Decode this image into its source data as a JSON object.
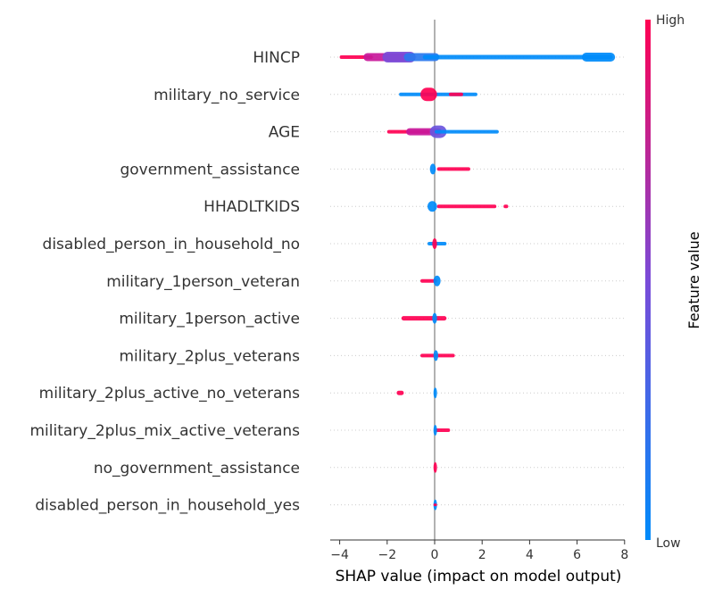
{
  "chart_data": {
    "type": "scatter",
    "subtype": "shap-beeswarm-summary",
    "xlabel": "SHAP value (impact on model output)",
    "xlim": [
      -4.4,
      8.2
    ],
    "xticks": [
      -4,
      -2,
      0,
      2,
      4,
      6,
      8
    ],
    "xtick_labels": [
      "−4",
      "−2",
      "0",
      "2",
      "4",
      "6",
      "8"
    ],
    "colorbar": {
      "label": "Feature value",
      "high_label": "High",
      "low_label": "Low",
      "high_color": "#ff0052",
      "low_color": "#008bfa"
    },
    "features": [
      {
        "name": "HINCP",
        "clusters": [
          {
            "min": -4.0,
            "max": -2.6,
            "color": "#ff0052",
            "width": 4
          },
          {
            "min": -3.0,
            "max": -1.0,
            "color": "#c8189a",
            "width": 9
          },
          {
            "min": -2.2,
            "max": -0.8,
            "color": "#7a4bd8",
            "width": 12
          },
          {
            "min": -1.3,
            "max": 0.2,
            "color": "#2a78ee",
            "width": 9
          },
          {
            "min": -0.5,
            "max": 7.5,
            "color": "#008bfa",
            "width": 5
          },
          {
            "min": 6.2,
            "max": 7.6,
            "color": "#008bfa",
            "width": 10
          }
        ]
      },
      {
        "name": "military_no_service",
        "clusters": [
          {
            "min": -1.5,
            "max": 1.8,
            "color": "#008bfa",
            "width": 4
          },
          {
            "min": -0.6,
            "max": 0.1,
            "color": "#ff0052",
            "width": 15
          },
          {
            "min": 0.6,
            "max": 1.2,
            "color": "#ff0052",
            "width": 4
          }
        ]
      },
      {
        "name": "AGE",
        "clusters": [
          {
            "min": -2.0,
            "max": -0.2,
            "color": "#ff0052",
            "width": 4
          },
          {
            "min": -1.2,
            "max": 0.3,
            "color": "#c8189a",
            "width": 8
          },
          {
            "min": -0.2,
            "max": 0.5,
            "color": "#6a55dd",
            "width": 14
          },
          {
            "min": 0.0,
            "max": 2.7,
            "color": "#008bfa",
            "width": 4
          }
        ]
      },
      {
        "name": "government_assistance",
        "clusters": [
          {
            "min": -0.2,
            "max": 0.05,
            "color": "#008bfa",
            "width": 12
          },
          {
            "min": 0.1,
            "max": 1.5,
            "color": "#ff0052",
            "width": 4
          }
        ]
      },
      {
        "name": "HHADLTKIDS",
        "clusters": [
          {
            "min": -0.3,
            "max": 0.1,
            "color": "#008bfa",
            "width": 12
          },
          {
            "min": 0.1,
            "max": 2.6,
            "color": "#ff0052",
            "width": 4
          },
          {
            "min": 2.9,
            "max": 3.1,
            "color": "#ff0052",
            "width": 4
          }
        ]
      },
      {
        "name": "disabled_person_in_household_no",
        "clusters": [
          {
            "min": -0.3,
            "max": 0.5,
            "color": "#008bfa",
            "width": 4
          },
          {
            "min": -0.1,
            "max": 0.1,
            "color": "#ff0052",
            "width": 12
          }
        ]
      },
      {
        "name": "military_1person_veteran",
        "clusters": [
          {
            "min": -0.6,
            "max": 0.1,
            "color": "#ff0052",
            "width": 4
          },
          {
            "min": -0.05,
            "max": 0.25,
            "color": "#008bfa",
            "width": 12
          }
        ]
      },
      {
        "name": "military_1person_active",
        "clusters": [
          {
            "min": -1.4,
            "max": 0.5,
            "color": "#ff0052",
            "width": 5
          },
          {
            "min": -0.1,
            "max": 0.1,
            "color": "#008bfa",
            "width": 12
          }
        ]
      },
      {
        "name": "military_2plus_veterans",
        "clusters": [
          {
            "min": -0.6,
            "max": 0.85,
            "color": "#ff0052",
            "width": 4
          },
          {
            "min": -0.05,
            "max": 0.15,
            "color": "#008bfa",
            "width": 12
          }
        ]
      },
      {
        "name": "military_2plus_active_no_veterans",
        "clusters": [
          {
            "min": -1.6,
            "max": -1.3,
            "color": "#ff0052",
            "width": 5
          },
          {
            "min": -0.05,
            "max": 0.1,
            "color": "#008bfa",
            "width": 12
          }
        ]
      },
      {
        "name": "military_2plus_mix_active_veterans",
        "clusters": [
          {
            "min": 0.0,
            "max": 0.65,
            "color": "#ff0052",
            "width": 4
          },
          {
            "min": -0.05,
            "max": 0.1,
            "color": "#008bfa",
            "width": 12
          }
        ]
      },
      {
        "name": "no_government_assistance",
        "clusters": [
          {
            "min": -0.05,
            "max": 0.1,
            "color": "#ff0052",
            "width": 12
          }
        ]
      },
      {
        "name": "disabled_person_in_household_yes",
        "clusters": [
          {
            "min": -0.05,
            "max": 0.1,
            "color": "#008bfa",
            "width": 12
          },
          {
            "min": -0.05,
            "max": 0.1,
            "color": "#ff0052",
            "width": 3
          }
        ]
      }
    ]
  }
}
